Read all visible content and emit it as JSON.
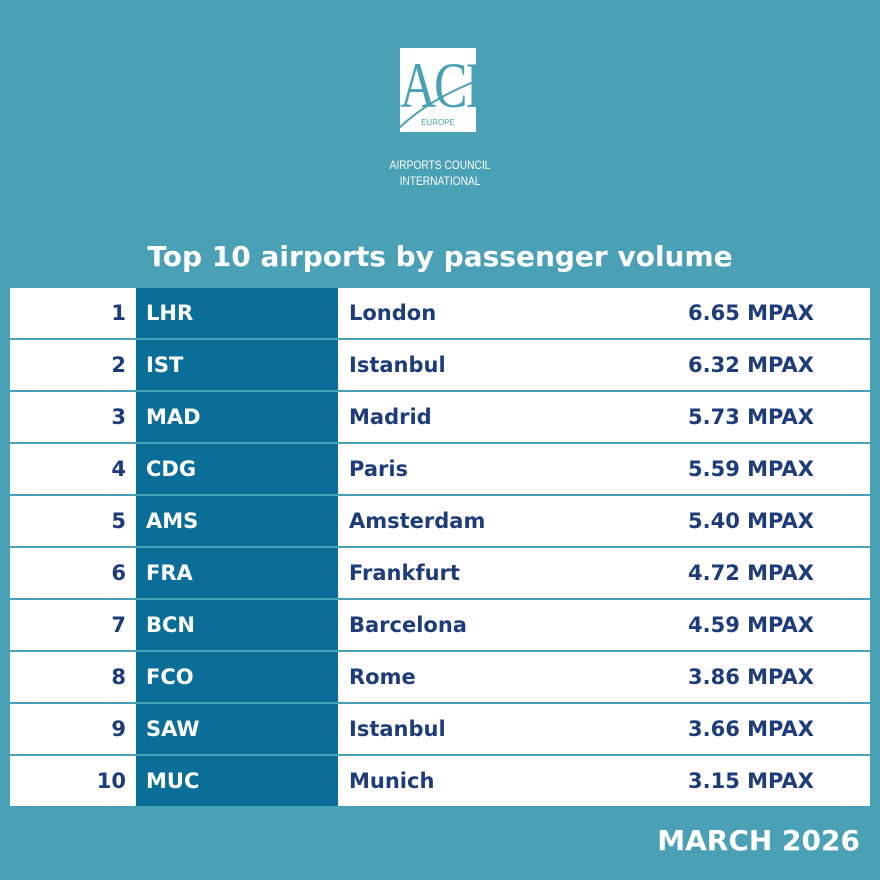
{
  "logo": {
    "mark": "ACI",
    "region": "EUROPE",
    "line1": "AIRPORTS COUNCIL",
    "line2": "INTERNATIONAL"
  },
  "title": "Top 10 airports by passenger volume",
  "table": {
    "rows": [
      [
        1,
        "LHR",
        "London",
        "6.65 MPAX"
      ],
      [
        2,
        "IST",
        "Istanbul",
        "6.32 MPAX"
      ],
      [
        3,
        "MAD",
        "Madrid",
        "5.73 MPAX"
      ],
      [
        4,
        "CDG",
        "Paris",
        "5.59 MPAX"
      ],
      [
        5,
        "AMS",
        "Amsterdam",
        "5.40 MPAX"
      ],
      [
        6,
        "FRA",
        "Frankfurt",
        "4.72 MPAX"
      ],
      [
        7,
        "BCN",
        "Barcelona",
        "4.59 MPAX"
      ],
      [
        8,
        "FCO",
        "Rome",
        "3.86 MPAX"
      ],
      [
        9,
        "SAW",
        "Istanbul",
        "3.66 MPAX"
      ],
      [
        10,
        "MUC",
        "Munich",
        "3.15 MPAX"
      ]
    ]
  },
  "footer": "MARCH 2026"
}
